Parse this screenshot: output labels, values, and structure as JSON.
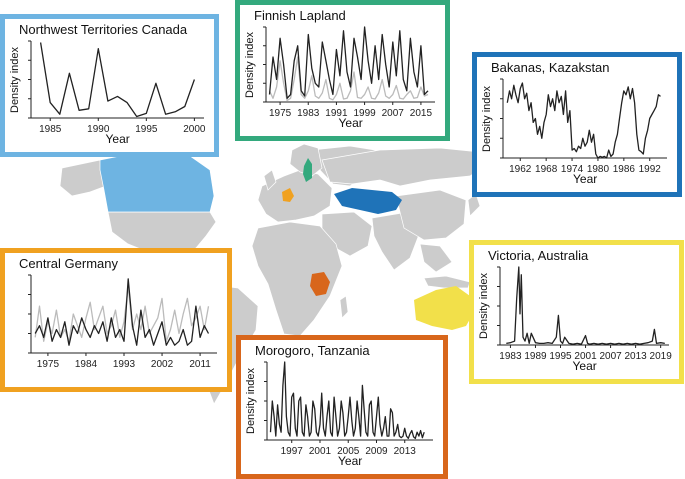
{
  "colors": {
    "land": "#cccccc",
    "border": "#ffffff",
    "canada": "#6eb4e2",
    "finland": "#33a97d",
    "kazakhstan": "#1f73b8",
    "germany": "#f0a120",
    "tanzania": "#d8661b",
    "australia": "#f2e04a",
    "series_dark": "#222222",
    "series_light": "#bbbbbb"
  },
  "chart_data": [
    {
      "id": "nwt",
      "type": "line",
      "title": "Northwest Territories Canada",
      "xlabel": "Year",
      "ylabel": "Density index",
      "frame_color": "#6eb4e2",
      "xlim": [
        1983,
        2001
      ],
      "ylim": [
        0,
        1
      ],
      "xticks": [
        1985,
        1990,
        1995,
        2000
      ],
      "series": [
        {
          "color": "dark",
          "x": [
            1984,
            1985,
            1986,
            1987,
            1988,
            1989,
            1990,
            1991,
            1992,
            1993,
            1994,
            1995,
            1996,
            1997,
            1998,
            1999,
            2000
          ],
          "y": [
            0.98,
            0.2,
            0.05,
            0.58,
            0.1,
            0.12,
            0.9,
            0.22,
            0.28,
            0.2,
            0.02,
            0.06,
            0.45,
            0.05,
            0.08,
            0.15,
            0.5
          ]
        }
      ]
    },
    {
      "id": "finnish",
      "type": "line",
      "title": "Finnish Lapland",
      "xlabel": "Year",
      "ylabel": "Density index",
      "frame_color": "#33a97d",
      "xlim": [
        1971,
        2019
      ],
      "ylim": [
        0,
        1
      ],
      "xticks": [
        1975,
        1983,
        1991,
        1999,
        2007,
        2015
      ],
      "series": [
        {
          "color": "light",
          "x": [
            1972,
            1973,
            1974,
            1975,
            1976,
            1977,
            1978,
            1979,
            1980,
            1981,
            1982,
            1983,
            1984,
            1985,
            1986,
            1987,
            1988,
            1989,
            1990,
            1991,
            1992,
            1993,
            1994,
            1995,
            1996,
            1997,
            1998,
            1999,
            2000,
            2001,
            2002,
            2003,
            2004,
            2005,
            2006,
            2007,
            2008,
            2009,
            2010,
            2011,
            2012,
            2013,
            2014,
            2015,
            2016,
            2017
          ],
          "y": [
            0.15,
            0.05,
            0.2,
            0.55,
            0.25,
            0.02,
            0.05,
            0.3,
            0.6,
            0.1,
            0.05,
            0.15,
            0.35,
            0.08,
            0.05,
            0.12,
            0.3,
            0.05,
            0.03,
            0.1,
            0.25,
            0.04,
            0.05,
            0.15,
            0.4,
            0.06,
            0.05,
            0.1,
            0.2,
            0.05,
            0.04,
            0.12,
            0.3,
            0.08,
            0.05,
            0.1,
            0.22,
            0.05,
            0.04,
            0.1,
            0.15,
            0.05,
            0.06,
            0.2,
            0.08,
            0.1
          ]
        },
        {
          "color": "dark",
          "x": [
            1972,
            1973,
            1974,
            1975,
            1976,
            1977,
            1978,
            1979,
            1980,
            1981,
            1982,
            1983,
            1984,
            1985,
            1986,
            1987,
            1988,
            1989,
            1990,
            1991,
            1992,
            1993,
            1994,
            1995,
            1996,
            1997,
            1998,
            1999,
            2000,
            2001,
            2002,
            2003,
            2004,
            2005,
            2006,
            2007,
            2008,
            2009,
            2010,
            2011,
            2012,
            2013,
            2014,
            2015,
            2016,
            2017
          ],
          "y": [
            0.1,
            0.6,
            0.3,
            0.85,
            0.5,
            0.05,
            0.1,
            0.55,
            0.75,
            0.15,
            0.08,
            0.9,
            0.45,
            0.25,
            0.2,
            0.8,
            0.55,
            0.3,
            0.1,
            0.7,
            0.35,
            0.95,
            0.4,
            0.2,
            0.85,
            0.6,
            0.3,
            1.0,
            0.55,
            0.25,
            0.75,
            0.3,
            0.9,
            0.5,
            0.2,
            0.8,
            0.35,
            0.95,
            0.3,
            0.15,
            0.85,
            0.4,
            0.2,
            0.75,
            0.1,
            0.15
          ]
        }
      ]
    },
    {
      "id": "bakanas",
      "type": "line",
      "title": "Bakanas, Kazakstan",
      "xlabel": "Year",
      "ylabel": "Density index",
      "frame_color": "#1f73b8",
      "xlim": [
        1958,
        1996
      ],
      "ylim": [
        0,
        1
      ],
      "xticks": [
        1962,
        1968,
        1974,
        1980,
        1986,
        1992
      ],
      "series": [
        {
          "color": "dark",
          "x": [
            1959,
            1959.5,
            1960,
            1960.5,
            1961,
            1961.5,
            1962,
            1962.5,
            1963,
            1963.5,
            1964,
            1964.5,
            1965,
            1965.5,
            1966,
            1966.5,
            1967,
            1967.5,
            1968,
            1968.5,
            1969,
            1969.5,
            1970,
            1970.5,
            1971,
            1971.5,
            1972,
            1972.5,
            1973,
            1973.5,
            1974,
            1974.5,
            1975,
            1975.5,
            1976,
            1976.5,
            1977,
            1977.5,
            1978,
            1978.5,
            1979,
            1979.5,
            1980,
            1980.5,
            1981,
            1981.5,
            1982,
            1982.5,
            1983,
            1983.5,
            1984,
            1984.5,
            1985,
            1985.5,
            1986,
            1986.5,
            1987,
            1987.5,
            1988,
            1988.5,
            1989,
            1989.5,
            1990,
            1990.5,
            1991,
            1991.5,
            1992,
            1992.5,
            1993,
            1993.5,
            1994,
            1994.5
          ],
          "y": [
            0.7,
            0.85,
            0.75,
            0.92,
            0.8,
            0.7,
            0.88,
            0.95,
            0.75,
            0.82,
            0.6,
            0.7,
            0.45,
            0.5,
            0.3,
            0.4,
            0.25,
            0.45,
            0.55,
            0.8,
            0.65,
            0.75,
            0.6,
            0.85,
            0.7,
            0.78,
            0.55,
            0.85,
            0.45,
            0.6,
            0.1,
            0.12,
            0.08,
            0.15,
            0.12,
            0.25,
            0.15,
            0.2,
            0.35,
            0.2,
            0.3,
            0.05,
            0.0,
            0.02,
            0.01,
            0.02,
            0.0,
            0.1,
            0.02,
            0.05,
            0.2,
            0.3,
            0.5,
            0.7,
            0.85,
            0.8,
            0.9,
            0.75,
            0.88,
            0.7,
            0.3,
            0.1,
            0.08,
            0.05,
            0.25,
            0.35,
            0.5,
            0.55,
            0.6,
            0.65,
            0.8,
            0.78
          ]
        }
      ]
    },
    {
      "id": "germany",
      "type": "line",
      "title": "Central Germany",
      "xlabel": "",
      "ylabel": "",
      "frame_color": "#f0a120",
      "xlim": [
        1971,
        2015
      ],
      "ylim": [
        0,
        1
      ],
      "xticks": [
        1975,
        1984,
        1993,
        2002,
        2011
      ],
      "series": [
        {
          "color": "light",
          "x": [
            1972,
            1973,
            1974,
            1975,
            1976,
            1977,
            1978,
            1979,
            1980,
            1981,
            1982,
            1983,
            1984,
            1985,
            1986,
            1987,
            1988,
            1989,
            1990,
            1991,
            1992,
            1993,
            1994,
            1995,
            1996,
            1997,
            1998,
            1999,
            2000,
            2001,
            2002,
            2003,
            2004,
            2005,
            2006,
            2007,
            2008,
            2009,
            2010,
            2011,
            2012,
            2013
          ],
          "y": [
            0.2,
            0.6,
            0.15,
            0.4,
            0.25,
            0.55,
            0.2,
            0.3,
            0.15,
            0.5,
            0.35,
            0.2,
            0.45,
            0.65,
            0.3,
            0.45,
            0.6,
            0.25,
            0.35,
            0.55,
            0.2,
            0.4,
            0.85,
            0.3,
            0.5,
            0.3,
            0.6,
            0.25,
            0.35,
            0.45,
            0.7,
            0.15,
            0.3,
            0.55,
            0.25,
            0.5,
            0.7,
            0.35,
            0.45,
            0.6,
            0.3,
            0.6
          ]
        },
        {
          "color": "dark",
          "x": [
            1972,
            1973,
            1974,
            1975,
            1976,
            1977,
            1978,
            1979,
            1980,
            1981,
            1982,
            1983,
            1984,
            1985,
            1986,
            1987,
            1988,
            1989,
            1990,
            1991,
            1992,
            1993,
            1994,
            1995,
            1996,
            1997,
            1998,
            1999,
            2000,
            2001,
            2002,
            2003,
            2004,
            2005,
            2006,
            2007,
            2008,
            2009,
            2010,
            2011,
            2012,
            2013
          ],
          "y": [
            0.25,
            0.35,
            0.2,
            0.45,
            0.15,
            0.3,
            0.2,
            0.4,
            0.1,
            0.35,
            0.25,
            0.45,
            0.3,
            0.2,
            0.35,
            0.25,
            0.4,
            0.15,
            0.45,
            0.2,
            0.3,
            0.15,
            0.95,
            0.35,
            0.1,
            0.55,
            0.2,
            0.3,
            0.1,
            0.25,
            0.4,
            0.1,
            0.2,
            0.1,
            0.15,
            0.3,
            0.1,
            0.15,
            0.6,
            0.2,
            0.35,
            0.25
          ]
        }
      ]
    },
    {
      "id": "morogoro",
      "type": "line",
      "title": "Morogoro, Tanzania",
      "xlabel": "Year",
      "ylabel": "Density index",
      "frame_color": "#d8661b",
      "xlim": [
        1993.5,
        2017
      ],
      "ylim": [
        0,
        1
      ],
      "xticks": [
        1997,
        2001,
        2005,
        2009,
        2013
      ],
      "series": [
        {
          "color": "dark",
          "x": [
            1994,
            1994.25,
            1994.5,
            1994.75,
            1995,
            1995.25,
            1995.5,
            1995.75,
            1996,
            1996.25,
            1996.5,
            1996.75,
            1997,
            1997.25,
            1997.5,
            1997.75,
            1998,
            1998.25,
            1998.5,
            1998.75,
            1999,
            1999.25,
            1999.5,
            1999.75,
            2000,
            2000.25,
            2000.5,
            2000.75,
            2001,
            2001.25,
            2001.5,
            2001.75,
            2002,
            2002.25,
            2002.5,
            2002.75,
            2003,
            2003.25,
            2003.5,
            2003.75,
            2004,
            2004.25,
            2004.5,
            2004.75,
            2005,
            2005.25,
            2005.5,
            2005.75,
            2006,
            2006.25,
            2006.5,
            2006.75,
            2007,
            2007.25,
            2007.5,
            2007.75,
            2008,
            2008.25,
            2008.5,
            2008.75,
            2009,
            2009.25,
            2009.5,
            2009.75,
            2010,
            2010.25,
            2010.5,
            2010.75,
            2011,
            2011.25,
            2011.5,
            2011.75,
            2012,
            2012.25,
            2012.5,
            2012.75,
            2013,
            2013.25,
            2013.5,
            2013.75,
            2014,
            2014.25,
            2014.5,
            2014.75,
            2015,
            2015.25,
            2015.5,
            2015.75
          ],
          "y": [
            0.1,
            0.5,
            0.3,
            0.05,
            0.45,
            0.2,
            0.1,
            0.7,
            1.0,
            0.3,
            0.1,
            0.05,
            0.55,
            0.6,
            0.15,
            0.05,
            0.5,
            0.55,
            0.1,
            0.05,
            0.45,
            0.3,
            0.05,
            0.1,
            0.5,
            0.4,
            0.1,
            0.05,
            0.2,
            0.6,
            0.15,
            0.05,
            0.3,
            0.5,
            0.1,
            0.05,
            0.55,
            0.3,
            0.05,
            0.15,
            0.5,
            0.35,
            0.05,
            0.1,
            0.3,
            0.55,
            0.25,
            0.05,
            0.15,
            0.5,
            0.3,
            0.05,
            0.7,
            0.4,
            0.1,
            0.05,
            0.45,
            0.5,
            0.1,
            0.05,
            0.3,
            0.55,
            0.2,
            0.05,
            0.15,
            0.3,
            0.05,
            0.05,
            0.4,
            0.35,
            0.05,
            0.1,
            0.2,
            0.05,
            0.03,
            0.05,
            0.15,
            0.05,
            0.02,
            0.08,
            0.12,
            0.04,
            0.02,
            0.1,
            0.05,
            0.12,
            0.03,
            0.1
          ]
        }
      ]
    },
    {
      "id": "victoria",
      "type": "line",
      "title": "Victoria, Australia",
      "xlabel": "Year",
      "ylabel": "Density index",
      "frame_color": "#f2e04a",
      "xlim": [
        1980.5,
        2021
      ],
      "ylim": [
        0,
        1
      ],
      "xticks": [
        1983,
        1989,
        1995,
        2001,
        2007,
        2013,
        2019
      ],
      "series": [
        {
          "color": "dark",
          "x": [
            1982,
            1983,
            1984,
            1984.5,
            1985,
            1985.3,
            1985.6,
            1986,
            1986.5,
            1987,
            1987.5,
            1988,
            1989,
            1990,
            1991,
            1992,
            1993,
            1994,
            1994.5,
            1995,
            1995.5,
            1996,
            1997,
            1998,
            1999,
            2000,
            2001,
            2001.5,
            2002,
            2003,
            2004,
            2005,
            2006,
            2007,
            2008,
            2009,
            2010,
            2011,
            2012,
            2013,
            2014,
            2015,
            2016,
            2017,
            2017.5,
            2018,
            2019,
            2020
          ],
          "y": [
            0.02,
            0.03,
            0.05,
            0.6,
            1.0,
            0.4,
            0.9,
            0.1,
            0.05,
            0.15,
            0.02,
            0.15,
            0.03,
            0.02,
            0.02,
            0.03,
            0.02,
            0.1,
            0.38,
            0.05,
            0.02,
            0.1,
            0.02,
            0.01,
            0.02,
            0.01,
            0.12,
            0.02,
            0.01,
            0.02,
            0.01,
            0.02,
            0.01,
            0.02,
            0.01,
            0.02,
            0.01,
            0.02,
            0.01,
            0.02,
            0.01,
            0.02,
            0.03,
            0.05,
            0.2,
            0.02,
            0.03,
            0.02
          ]
        }
      ]
    }
  ]
}
